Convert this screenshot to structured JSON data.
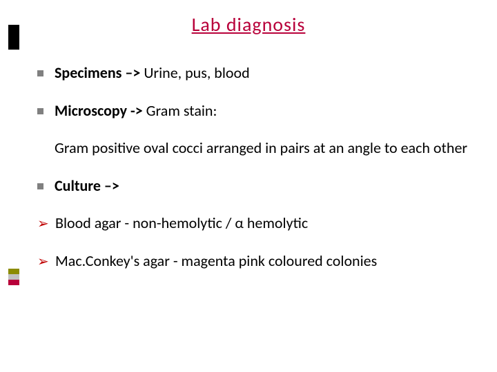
{
  "title": "Lab diagnosis",
  "leftStripes": [
    "#8b8b00",
    "#c0c0c0",
    "#b8003a"
  ],
  "items": {
    "specimens": {
      "label": "Specimens –>",
      "text": " Urine, pus, blood"
    },
    "microscopy": {
      "label": "Microscopy ->",
      "text": " Gram stain:"
    },
    "microscopyDetail": "Gram positive oval cocci arranged  in pairs at an angle to each other",
    "culture": {
      "label": "Culture –>"
    },
    "bloodAgar": "Blood agar - non-hemolytic / α hemolytic",
    "macconkey": "Mac.Conkey's agar - magenta pink coloured colonies"
  },
  "colors": {
    "titleColor": "#b8003a",
    "bulletGray": "#808080",
    "arrowColor": "#c00000"
  }
}
